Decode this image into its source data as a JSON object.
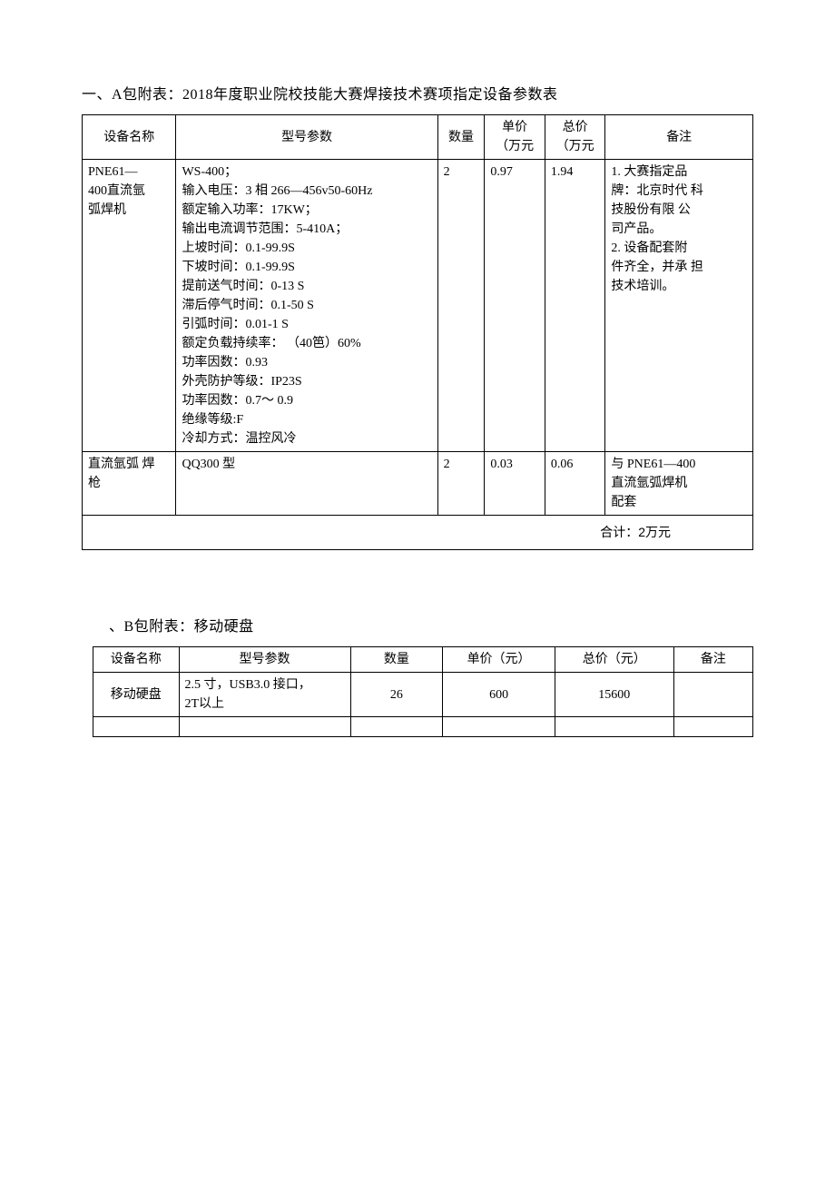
{
  "sectionA": {
    "title": "一、A包附表：2018年度职业院校技能大赛焊接技术赛项指定设备参数表",
    "columns": {
      "name": "设备名称",
      "spec": "型号参数",
      "qty": "数量",
      "unitPrice": {
        "l1": "单价",
        "l2": "（万元"
      },
      "totalPrice": {
        "l1": "总价",
        "l2": "（万元"
      },
      "note": "备注"
    },
    "rows": [
      {
        "name": {
          "l1": "PNE61—",
          "l2": "400直流氩",
          "l3": "弧焊机"
        },
        "spec": {
          "l1": "WS-400；",
          "l2": "输入电压：3 相 266—456v50-60Hz",
          "l3": "额定输入功率：17KW；",
          "l4": "输出电流调节范围：5-410A；",
          "l5": "上坡时间：0.1-99.9S",
          "l6": "下坡时间：0.1-99.9S",
          "l7": "提前送气时间：0-13 S",
          "l8": "滞后停气时间：0.1-50 S",
          "l9": "引弧时间：0.01-1 S",
          "l10": "额定负载持续率： （40笆）60%",
          "l11": "功率因数：0.93",
          "l12": "外壳防护等级：IP23S",
          "l13": "功率因数：0.7～ 0.9",
          "l14": "绝缘等级:F",
          "l15": "冷却方式：温控风冷"
        },
        "qty": "2",
        "unitPrice": "0.97",
        "totalPrice": "1.94",
        "note": {
          "l1": "1.  大赛指定品",
          "l2": "牌：北京时代 科",
          "l3": "技股份有限   公",
          "l4": "司产品。",
          "l5": "2.  设备配套附",
          "l6": "件齐全，并承 担",
          "l7": "技术培训。"
        }
      },
      {
        "name": {
          "l1": "直流氩弧 焊",
          "l2": "枪"
        },
        "spec": {
          "l1": "QQ300 型"
        },
        "qty": "2",
        "unitPrice": "0.03",
        "totalPrice": "0.06",
        "note": {
          "l1": "与  PNE61—400",
          "l2": "直流氩弧焊机",
          "l3": "配套"
        }
      }
    ],
    "totalLabel": "合计：2万元"
  },
  "sectionB": {
    "title": "、B包附表：移动硬盘",
    "columns": {
      "name": "设备名称",
      "spec": "型号参数",
      "qty": "数量",
      "unitPrice": "单价（元）",
      "totalPrice": "总价（元）",
      "note": "备注"
    },
    "rows": [
      {
        "name": "移动硬盘",
        "spec": {
          "l1": "2.5 寸，USB3.0 接口，",
          "l2": "2T以上"
        },
        "qty": "26",
        "unitPrice": "600",
        "totalPrice": "15600",
        "note": ""
      }
    ]
  },
  "style": {
    "textColor": "#000000",
    "backgroundColor": "#ffffff",
    "borderColor": "#000000",
    "fontFamilyBody": "SimSun",
    "fontFamilyTotal": "SimHei",
    "fontSizeTitle": 16,
    "fontSizeTable": 14,
    "tableA": {
      "type": "table",
      "columns": [
        "设备名称",
        "型号参数",
        "数量",
        "单价（万元",
        "总价（万元",
        "备注"
      ],
      "columnWidthsPct": [
        14,
        39,
        7,
        9,
        9,
        22
      ]
    },
    "tableB": {
      "type": "table",
      "columns": [
        "设备名称",
        "型号参数",
        "数量",
        "单价（元）",
        "总价（元）",
        "备注"
      ],
      "columnWidthsPct": [
        13,
        26,
        14,
        17,
        18,
        12
      ]
    }
  }
}
